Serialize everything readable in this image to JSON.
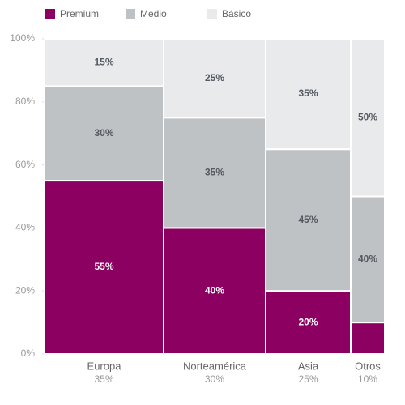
{
  "chart_data": {
    "type": "marimekko",
    "categories": [
      "Europa",
      "Norteamérica",
      "Asia",
      "Otros"
    ],
    "widths": [
      35,
      30,
      25,
      10
    ],
    "width_labels": [
      "35%",
      "30%",
      "25%",
      "10%"
    ],
    "series": [
      {
        "name": "Premium",
        "color": "#8b0060",
        "label_color": "#ffffff",
        "values": [
          55,
          40,
          20,
          10
        ],
        "value_labels": [
          "55%",
          "40%",
          "20%",
          null
        ]
      },
      {
        "name": "Medio",
        "color": "#bfc2c4",
        "label_color": "#555a62",
        "values": [
          30,
          35,
          45,
          40
        ],
        "value_labels": [
          "30%",
          "35%",
          "45%",
          "40%"
        ]
      },
      {
        "name": "Básico",
        "color": "#e8eaec",
        "label_color": "#555a62",
        "values": [
          15,
          25,
          35,
          50
        ],
        "value_labels": [
          "15%",
          "25%",
          "35%",
          "50%"
        ]
      }
    ],
    "ylim": [
      0,
      100
    ],
    "yticks": [
      {
        "value": 0,
        "label": "0%"
      },
      {
        "value": 20,
        "label": "20%"
      },
      {
        "value": 40,
        "label": "40%"
      },
      {
        "value": 60,
        "label": "60%"
      },
      {
        "value": 80,
        "label": "80%"
      },
      {
        "value": 100,
        "label": "100%"
      }
    ]
  }
}
